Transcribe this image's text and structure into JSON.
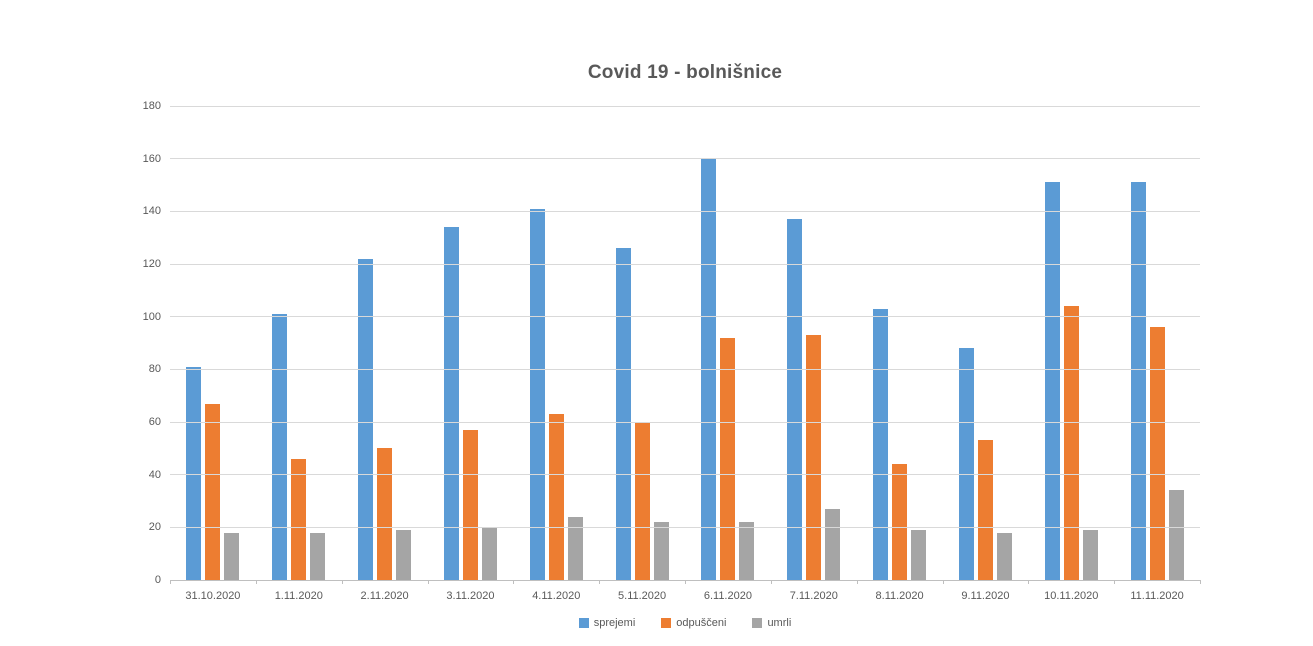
{
  "title": "Covid 19 - bolnišnice",
  "chart_data": {
    "type": "bar",
    "title": "Covid 19 - bolnišnice",
    "categories": [
      "31.10.2020",
      "1.11.2020",
      "2.11.2020",
      "3.11.2020",
      "4.11.2020",
      "5.11.2020",
      "6.11.2020",
      "7.11.2020",
      "8.11.2020",
      "9.11.2020",
      "10.11.2020",
      "11.11.2020"
    ],
    "series": [
      {
        "name": "sprejemi",
        "color": "#5B9BD5",
        "values": [
          81,
          101,
          122,
          134,
          141,
          126,
          160,
          137,
          103,
          88,
          151,
          151
        ]
      },
      {
        "name": "odpuščeni",
        "color": "#ED7D31",
        "values": [
          67,
          46,
          50,
          57,
          63,
          60,
          92,
          93,
          44,
          53,
          104,
          96
        ]
      },
      {
        "name": "umrli",
        "color": "#A5A5A5",
        "values": [
          18,
          18,
          19,
          20,
          24,
          22,
          22,
          27,
          19,
          18,
          19,
          34
        ]
      }
    ],
    "xlabel": "",
    "ylabel": "",
    "ylim": [
      0,
      180
    ],
    "ytick_step": 20,
    "grid": "horizontal",
    "legend_position": "bottom"
  },
  "colors": {
    "grid": "#D9D9D9",
    "axis": "#BFBFBF",
    "text": "#595959",
    "background": "#FFFFFF"
  }
}
